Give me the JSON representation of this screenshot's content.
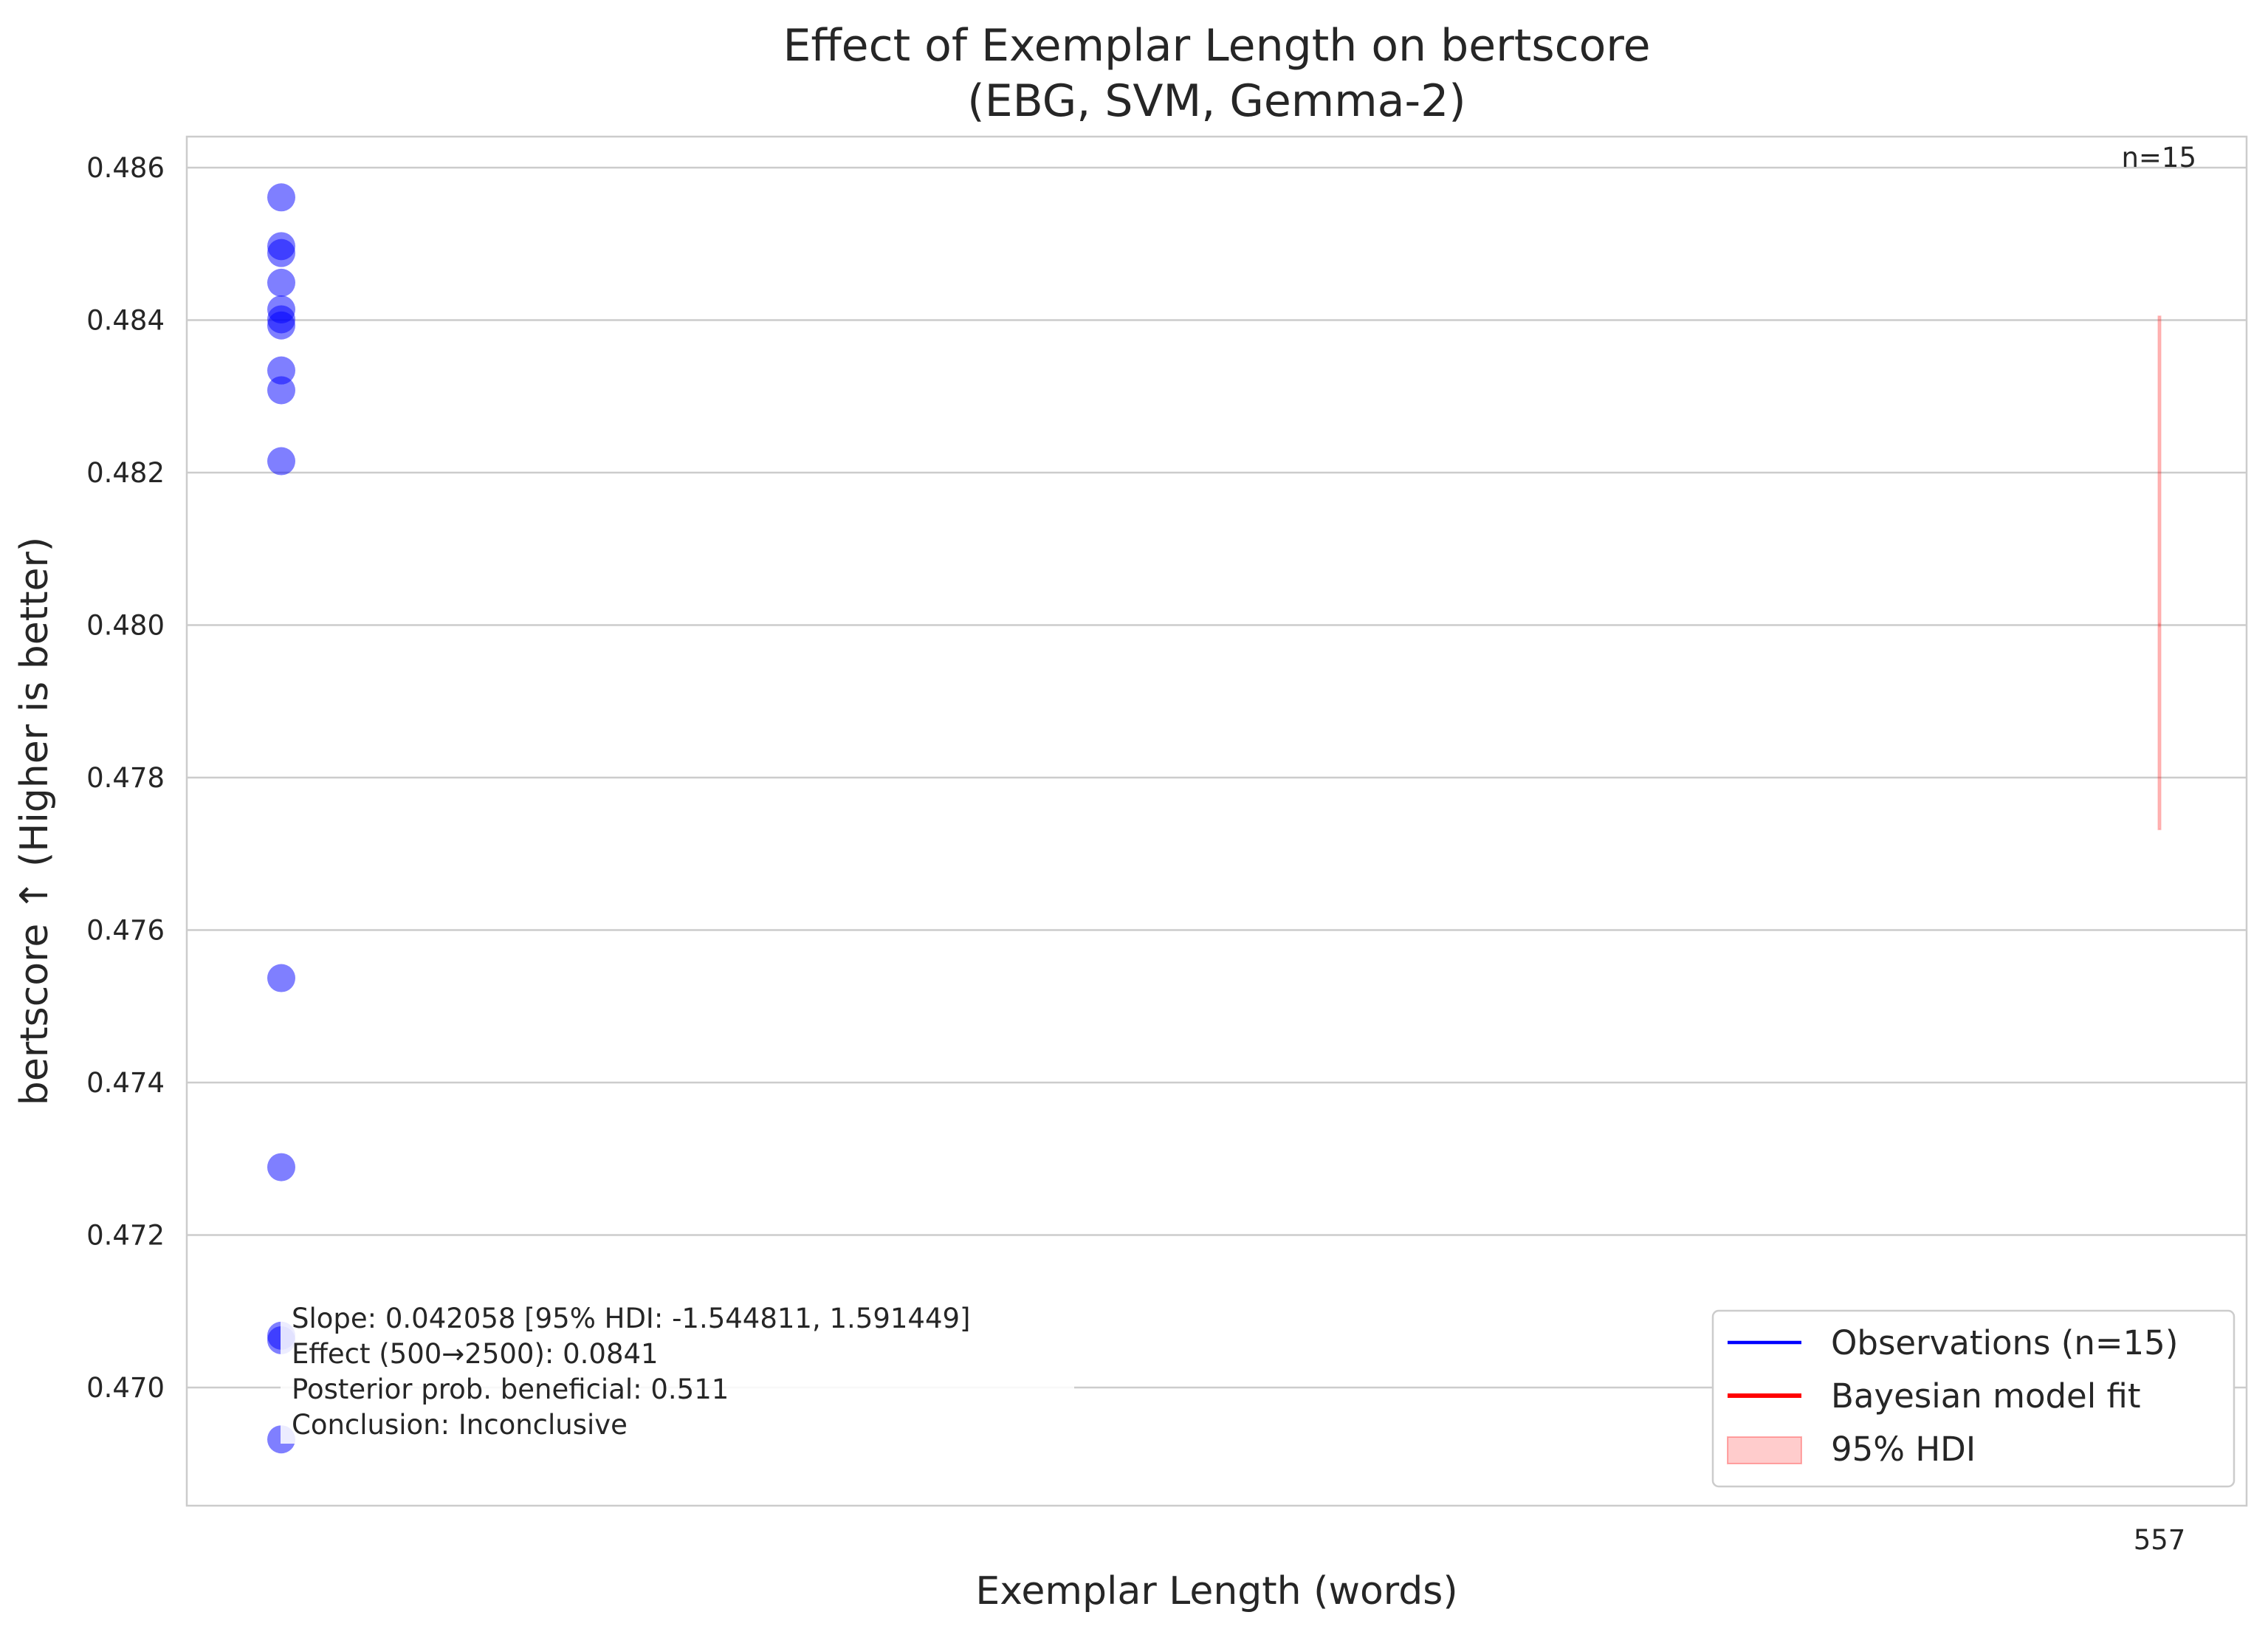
{
  "chart_data": {
    "type": "scatter",
    "title": "Effect of Exemplar Length on bertscore",
    "subtitle": "(EBG, SVM, Gemma-2)",
    "xlabel": "Exemplar Length (words)",
    "ylabel": "bertscore ↑ (Higher is better)",
    "ylim": [
      0.4685,
      0.4864
    ],
    "yticks": [
      "0.486",
      "0.484",
      "0.482",
      "0.480",
      "0.478",
      "0.476",
      "0.474",
      "0.472",
      "0.470"
    ],
    "xtick_label": "557",
    "grid": "horizontal",
    "n_label": "n=15",
    "series": [
      {
        "name": "Observations (n=15)",
        "color": "#0000ff",
        "x_category": "557",
        "values": [
          0.48561,
          0.48497,
          0.48488,
          0.48449,
          0.48414,
          0.48401,
          0.48393,
          0.48334,
          0.48308,
          0.48215,
          0.47537,
          0.47289,
          0.47068,
          0.47062,
          0.46932
        ]
      }
    ],
    "hdi_band": {
      "name": "95% HDI",
      "x_category": "557",
      "lower": 0.47732,
      "upper": 0.48405,
      "color": "#ff0000"
    },
    "model_fit": {
      "name": "Bayesian model fit",
      "color": "#ff0000",
      "value": 0.48
    },
    "annotation": [
      "Slope: 0.042058 [95% HDI: -1.544811, 1.591449]",
      "Effect (500→2500): 0.0841",
      "Posterior prob. beneficial: 0.511",
      "Conclusion: Inconclusive"
    ],
    "legend": {
      "position": "lower right",
      "entries": [
        {
          "label": "Observations (n=15)",
          "kind": "line",
          "color": "#0000ff"
        },
        {
          "label": "Bayesian model fit",
          "kind": "line",
          "color": "#ff0000"
        },
        {
          "label": "95% HDI",
          "kind": "patch",
          "color": "#ff0000"
        }
      ]
    }
  }
}
